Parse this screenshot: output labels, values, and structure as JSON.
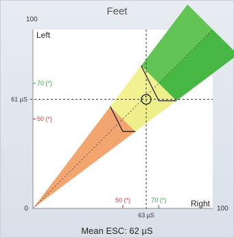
{
  "window": {
    "title": "Feet"
  },
  "summary": {
    "label": "Mean ESC: 62 µS"
  },
  "chart_data": {
    "type": "area",
    "title": "Feet",
    "xlabel": "Right",
    "ylabel": "Left",
    "xlim": [
      0,
      100
    ],
    "ylim": [
      0,
      100
    ],
    "axis_ticks": {
      "origin": "0",
      "x_max": "100",
      "y_max": "100"
    },
    "grid": false,
    "zones": [
      {
        "name": "orange",
        "color": "#f2a56f",
        "from": 0,
        "to": 50
      },
      {
        "name": "yellow",
        "color": "#eeee8a",
        "from": 50,
        "to": 70
      },
      {
        "name": "green",
        "color": "#46b843",
        "from": 70,
        "to": 100
      }
    ],
    "zone_light": {
      "yellow": "#f5f59a",
      "green": "#79ce63"
    },
    "wedge_spread": 0.14,
    "diagonal": {
      "color": "#555555"
    },
    "thresholds": [
      {
        "value": 50,
        "label": "50 (*)",
        "color": "#d23b3b"
      },
      {
        "value": 70,
        "label": "70 (*)",
        "color": "#3aa84a"
      }
    ],
    "marker": {
      "x": 63,
      "y": 61,
      "x_label": "63 µS",
      "y_label": "61 µS"
    }
  }
}
